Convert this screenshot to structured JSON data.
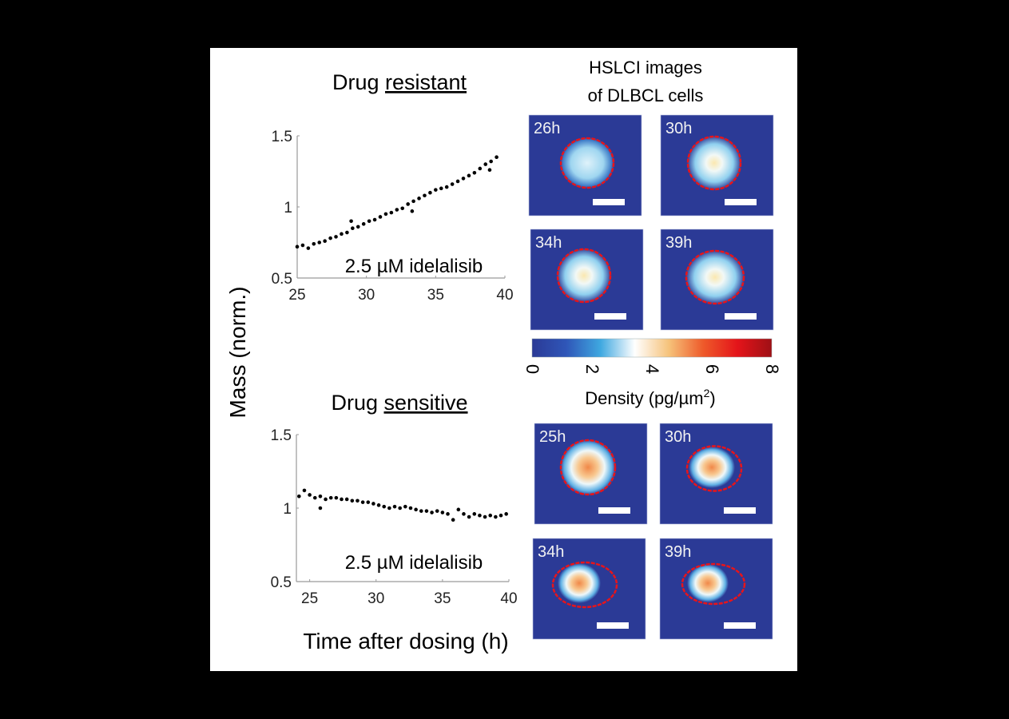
{
  "ylabel": "Mass (norm.)",
  "xlabel": "Time after dosing (h)",
  "images_title_line1": "HSLCI images",
  "images_title_line2": "of DLBCL cells",
  "colorbar": {
    "label": "Density (pg/µm",
    "label_sup": "2",
    "label_end": ")",
    "ticks": [
      "0",
      "2",
      "4",
      "6",
      "8"
    ],
    "range": [
      0,
      8
    ],
    "colors": [
      "#2b3a96",
      "#2f56b8",
      "#3fa8e0",
      "#ffffff",
      "#f6c27a",
      "#ee5a2a",
      "#e4141a",
      "#9e1015"
    ]
  },
  "chart_data": [
    {
      "type": "scatter",
      "title_prefix": "Drug ",
      "title_underlined": "resistant",
      "annotation": "2.5 µM idelalisib",
      "xlim": [
        25,
        40
      ],
      "ylim": [
        0.5,
        1.5
      ],
      "xticks": [
        "25",
        "30",
        "35",
        "40"
      ],
      "yticks": [
        "0.5",
        "1",
        "1.5"
      ],
      "x": [
        25.0,
        25.4,
        25.8,
        26.2,
        26.6,
        27.0,
        27.4,
        27.8,
        28.2,
        28.6,
        29.0,
        29.4,
        29.8,
        30.2,
        30.6,
        31.0,
        31.4,
        31.8,
        32.2,
        32.6,
        33.0,
        33.4,
        33.8,
        34.2,
        34.6,
        35.0,
        35.4,
        35.8,
        36.2,
        36.6,
        37.0,
        37.4,
        37.8,
        38.2,
        38.6,
        39.0,
        39.4,
        33.3,
        38.9,
        28.9
      ],
      "y": [
        0.72,
        0.73,
        0.71,
        0.74,
        0.75,
        0.76,
        0.78,
        0.79,
        0.81,
        0.82,
        0.85,
        0.86,
        0.88,
        0.9,
        0.91,
        0.93,
        0.95,
        0.96,
        0.98,
        0.99,
        1.02,
        1.04,
        1.06,
        1.08,
        1.1,
        1.12,
        1.13,
        1.14,
        1.16,
        1.18,
        1.2,
        1.22,
        1.24,
        1.27,
        1.3,
        1.32,
        1.35,
        0.97,
        1.26,
        0.9
      ],
      "images": [
        "26h",
        "30h",
        "34h",
        "39h"
      ]
    },
    {
      "type": "scatter",
      "title_prefix": "Drug ",
      "title_underlined": "sensitive",
      "annotation": "2.5 µM idelalisib",
      "xlim": [
        24,
        40
      ],
      "ylim": [
        0.5,
        1.5
      ],
      "xticks": [
        "25",
        "30",
        "35",
        "40"
      ],
      "yticks": [
        "0.5",
        "1",
        "1.5"
      ],
      "x": [
        24.2,
        24.6,
        25.0,
        25.4,
        25.8,
        26.2,
        26.6,
        27.0,
        27.4,
        27.8,
        28.2,
        28.6,
        29.0,
        29.4,
        29.8,
        30.2,
        30.6,
        31.0,
        31.4,
        31.8,
        32.2,
        32.6,
        33.0,
        33.4,
        33.8,
        34.2,
        34.6,
        35.0,
        35.4,
        35.8,
        36.2,
        36.6,
        37.0,
        37.4,
        37.8,
        38.2,
        38.6,
        39.0,
        39.4,
        39.8,
        25.8
      ],
      "y": [
        1.08,
        1.12,
        1.09,
        1.07,
        1.08,
        1.06,
        1.07,
        1.07,
        1.06,
        1.06,
        1.05,
        1.05,
        1.04,
        1.04,
        1.03,
        1.02,
        1.01,
        1.0,
        1.01,
        1.0,
        1.01,
        1.0,
        0.99,
        0.98,
        0.98,
        0.97,
        0.98,
        0.97,
        0.96,
        0.92,
        0.99,
        0.96,
        0.94,
        0.96,
        0.95,
        0.94,
        0.95,
        0.94,
        0.95,
        0.96,
        1.0
      ],
      "images": [
        "25h",
        "30h",
        "34h",
        "39h"
      ]
    }
  ]
}
